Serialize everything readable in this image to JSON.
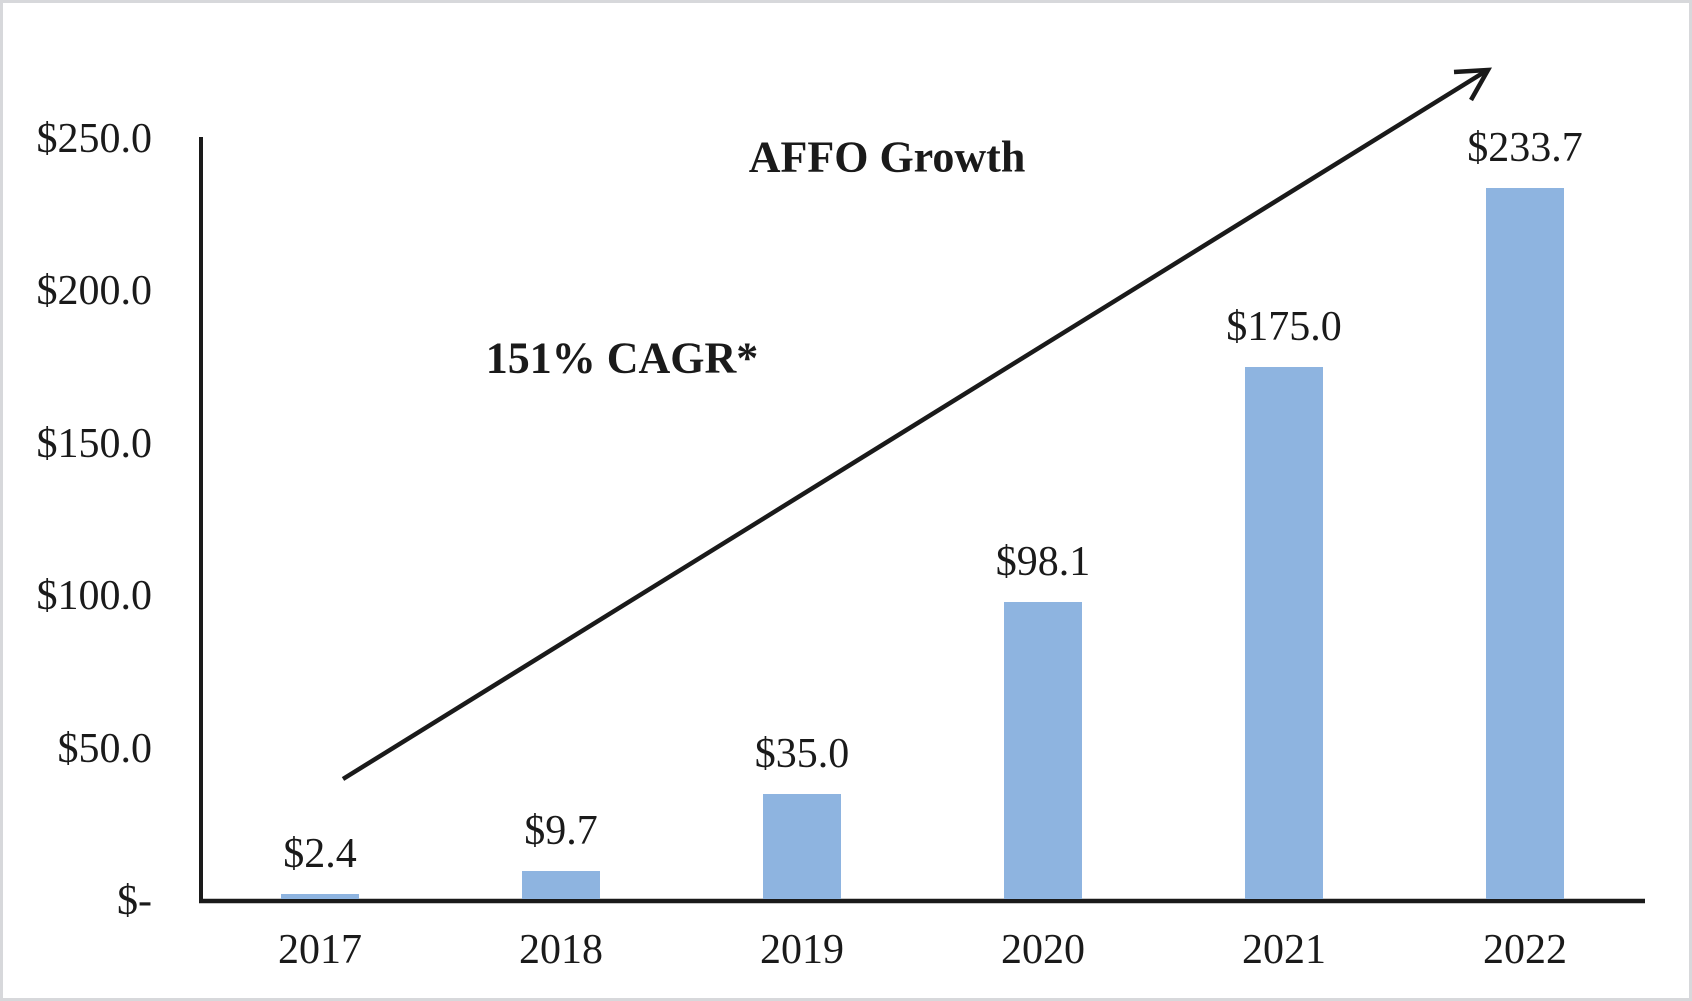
{
  "chart_data": {
    "type": "bar",
    "title": "AFFO Growth",
    "annotation": "151% CAGR*",
    "categories": [
      "2017",
      "2018",
      "2019",
      "2020",
      "2021",
      "2022"
    ],
    "values": [
      2.4,
      9.7,
      35.0,
      98.1,
      175.0,
      233.7
    ],
    "value_labels": [
      "$2.4",
      "$9.7",
      "$35.0",
      "$98.1",
      "$175.0",
      "$233.7"
    ],
    "y_ticks": [
      {
        "label": "$250.0",
        "value": 250
      },
      {
        "label": "$200.0",
        "value": 200
      },
      {
        "label": "$150.0",
        "value": 150
      },
      {
        "label": "$100.0",
        "value": 100
      },
      {
        "label": "$50.0",
        "value": 50
      },
      {
        "label": "$-",
        "value": 0
      }
    ],
    "ylim": [
      0,
      250
    ],
    "xlabel": "",
    "ylabel": "",
    "grid": false,
    "legend_position": "none",
    "bar_color": "#8EB4E0",
    "axis_color": "#1a1a1a",
    "text_color": "#1a1a1a",
    "arrow_annotation": "upward growth arrow"
  }
}
